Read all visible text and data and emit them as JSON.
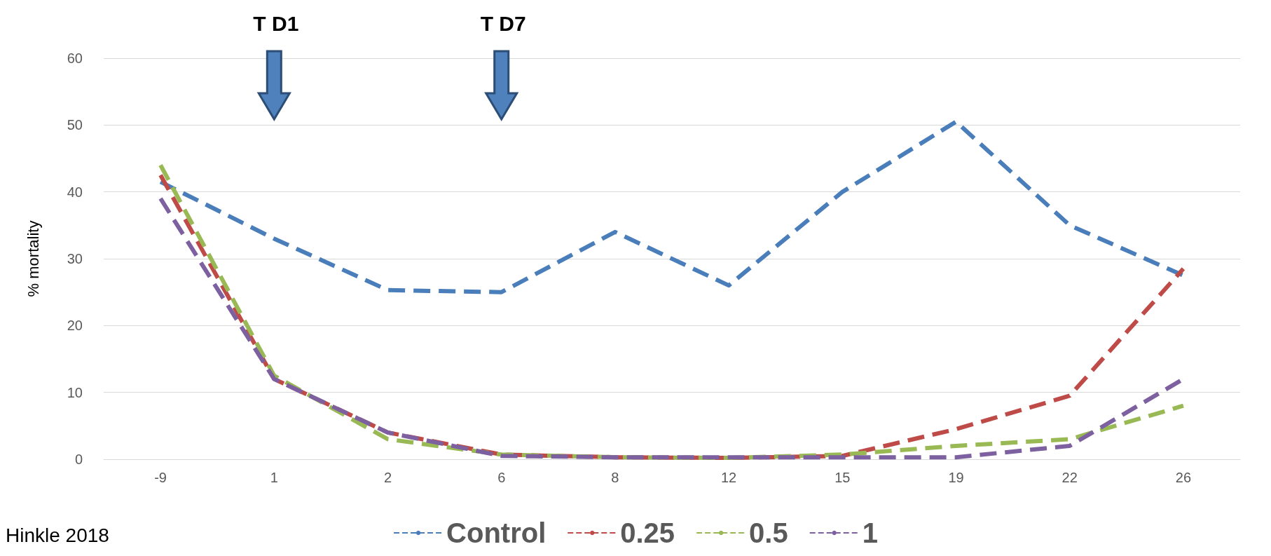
{
  "chart_data": {
    "type": "line",
    "ylabel": "% mortality",
    "categories": [
      "-9",
      "1",
      "2",
      "6",
      "8",
      "12",
      "15",
      "19",
      "22",
      "26"
    ],
    "series": [
      {
        "name": "Control",
        "color": "#4a7ebb",
        "values": [
          41.5,
          33,
          25.3,
          25,
          34,
          26,
          40,
          50.5,
          35,
          27.5
        ]
      },
      {
        "name": "0.25",
        "color": "#be4b48",
        "values": [
          42.5,
          12,
          4,
          0.7,
          0.3,
          0.2,
          0.5,
          4.5,
          9.5,
          28.5
        ]
      },
      {
        "name": "0.5",
        "color": "#98b954",
        "values": [
          44,
          12.5,
          3,
          0.7,
          0.3,
          0.2,
          0.7,
          2,
          3,
          8
        ]
      },
      {
        "name": "1",
        "color": "#7d60a0",
        "values": [
          39,
          12,
          4,
          0.5,
          0.3,
          0.3,
          0.3,
          0.3,
          2,
          12
        ]
      }
    ],
    "ylim": [
      0,
      60
    ],
    "yticks": [
      0,
      10,
      20,
      30,
      40,
      50,
      60
    ],
    "grid": "y",
    "legend": "bottom",
    "marker": "none",
    "line_style": "dashed",
    "annotations": [
      "T D1",
      "T D7",
      "Hinkle 2018"
    ]
  }
}
